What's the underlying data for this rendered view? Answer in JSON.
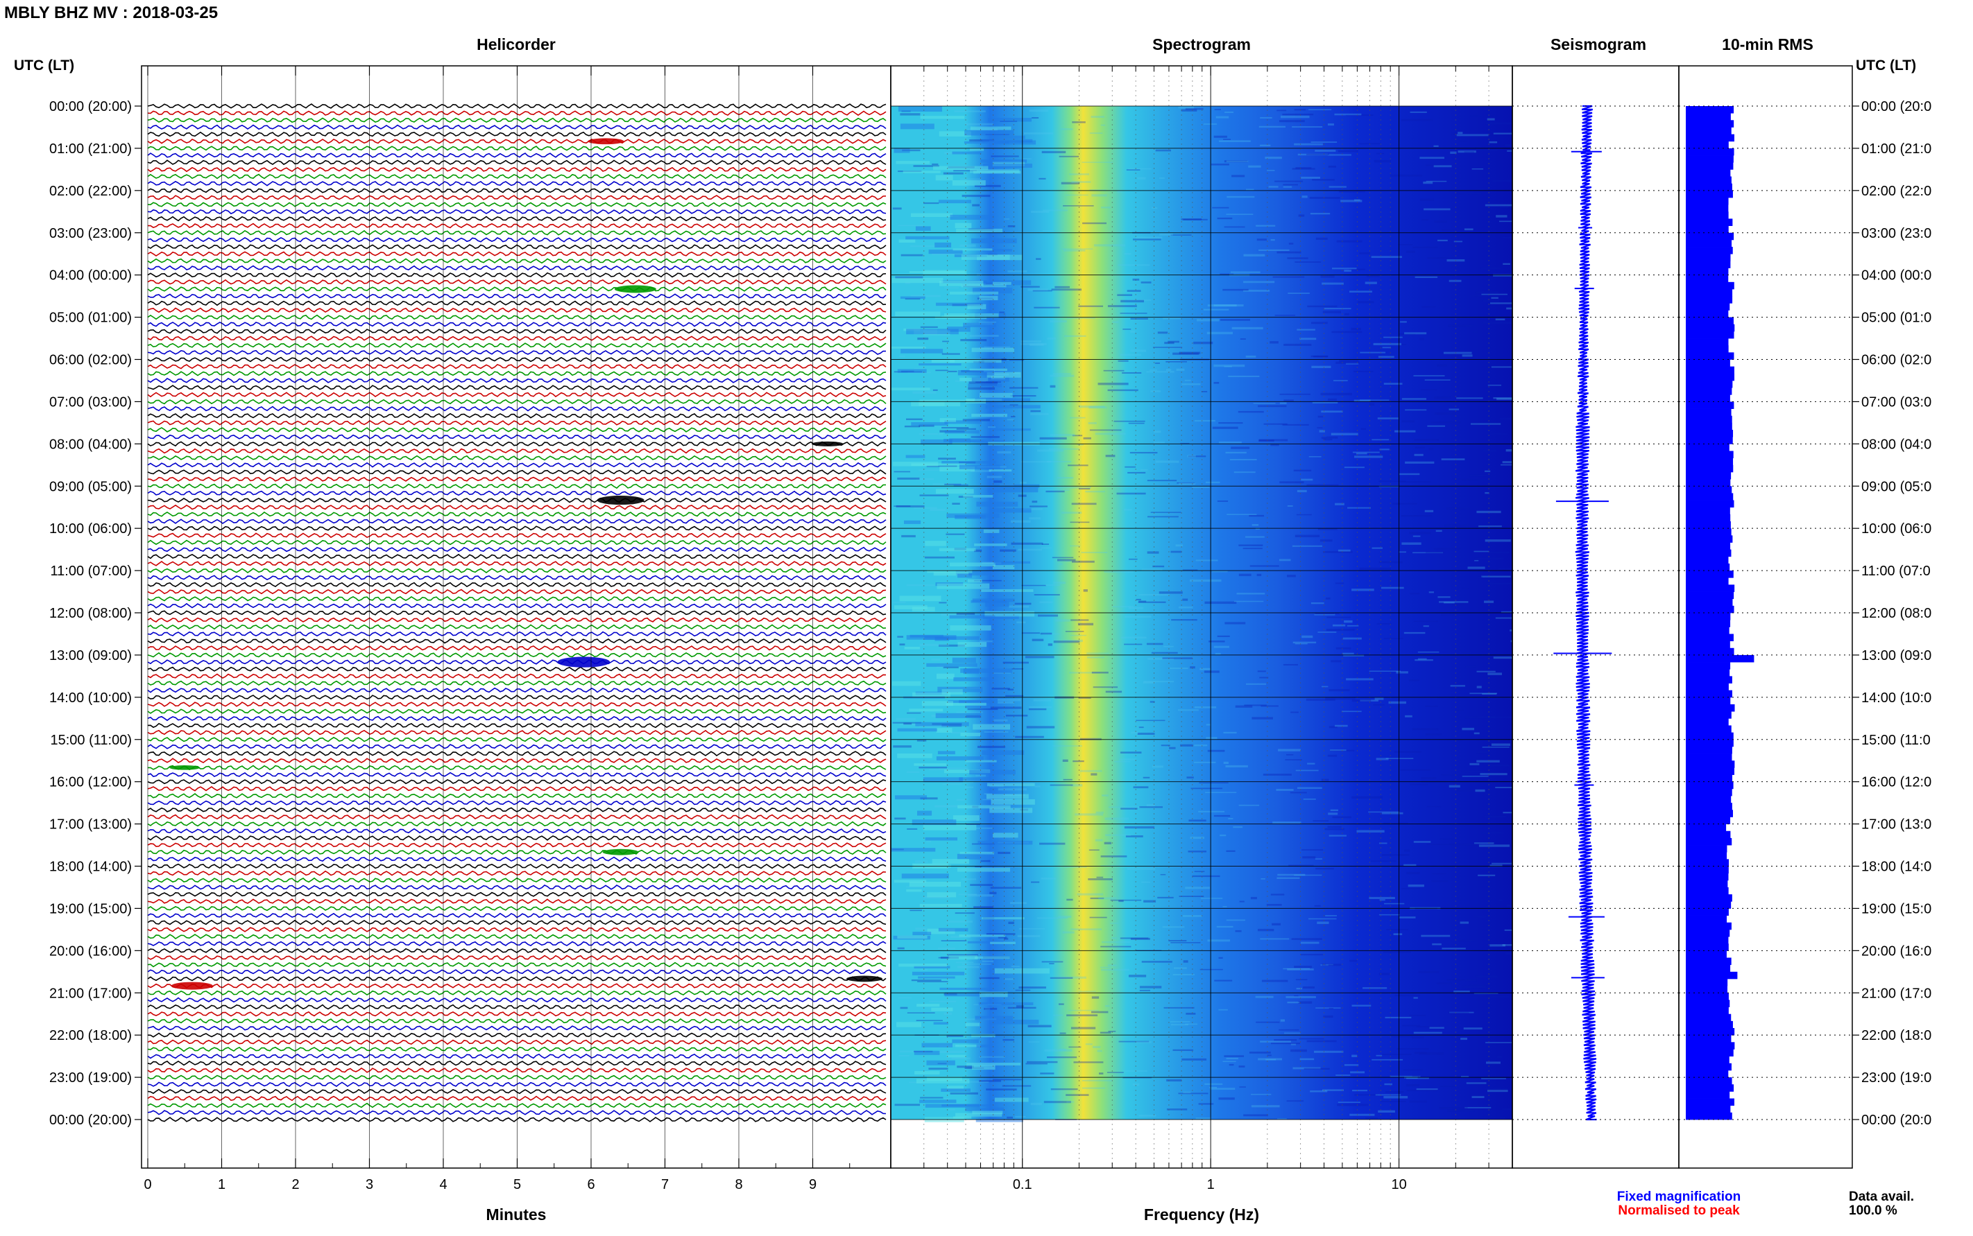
{
  "header": {
    "title": "MBLY BHZ MV : 2018-03-25"
  },
  "panels": {
    "helicorder": "Helicorder",
    "spectrogram": "Spectrogram",
    "seismogram": "Seismogram",
    "rms": "10-min RMS"
  },
  "time_axis": {
    "label_left": "UTC (LT)",
    "label_right": "UTC (LT)",
    "labels": [
      "00:00 (20:00)",
      "01:00 (21:00)",
      "02:00 (22:00)",
      "03:00 (23:00)",
      "04:00 (00:00)",
      "05:00 (01:00)",
      "06:00 (02:00)",
      "07:00 (03:00)",
      "08:00 (04:00)",
      "09:00 (05:00)",
      "10:00 (06:00)",
      "11:00 (07:00)",
      "12:00 (08:00)",
      "13:00 (09:00)",
      "14:00 (10:00)",
      "15:00 (11:00)",
      "16:00 (12:00)",
      "17:00 (13:00)",
      "18:00 (14:00)",
      "19:00 (15:00)",
      "20:00 (16:00)",
      "21:00 (17:00)",
      "22:00 (18:00)",
      "23:00 (19:00)",
      "00:00 (20:00)"
    ],
    "labels_right": [
      "00:00 (20:0",
      "01:00 (21:0",
      "02:00 (22:0",
      "03:00 (23:0",
      "04:00 (00:0",
      "05:00 (01:0",
      "06:00 (02:0",
      "07:00 (03:0",
      "08:00 (04:0",
      "09:00 (05:0",
      "10:00 (06:0",
      "11:00 (07:0",
      "12:00 (08:0",
      "13:00 (09:0",
      "14:00 (10:0",
      "15:00 (11:0",
      "16:00 (12:0",
      "17:00 (13:0",
      "18:00 (14:0",
      "19:00 (15:0",
      "20:00 (16:0",
      "21:00 (17:0",
      "22:00 (18:0",
      "23:00 (19:0",
      "00:00 (20:0"
    ]
  },
  "helicorder_axis": {
    "xlabel": "Minutes",
    "ticks": [
      "0",
      "1",
      "2",
      "3",
      "4",
      "5",
      "6",
      "7",
      "8",
      "9"
    ]
  },
  "spectrogram_axis": {
    "xlabel": "Frequency (Hz)",
    "ticks": [
      "0.1",
      "1",
      "10"
    ]
  },
  "legend": {
    "fixed": "Fixed magnification",
    "normalised": "Normalised to peak"
  },
  "data_avail": {
    "label": "Data avail.",
    "value": "100.0 %"
  },
  "colors": {
    "trace_cycle": [
      "#000000",
      "#cc0000",
      "#009900",
      "#0000cc"
    ],
    "seismogram": "#0000ff",
    "rms_bar": "#0000ff",
    "legend_fixed": "#0000ff",
    "legend_norm": "#ff0000",
    "spectro_bg": "#0a2ad0",
    "spectro_mid": "#1e78e8",
    "spectro_cyan": "#35c6e6",
    "spectro_yellow": "#f2e23a"
  },
  "chart_data": [
    {
      "type": "line",
      "name_text": "Helicorder",
      "x_range_minutes": [
        0,
        10
      ],
      "rows_per_hour": 6,
      "hours": 24,
      "events": [
        {
          "row": 5,
          "minute": 6.2,
          "amp": 2
        },
        {
          "row": 26,
          "minute": 6.6,
          "amp": 2.5
        },
        {
          "row": 48,
          "minute": 9.2,
          "amp": 1.6
        },
        {
          "row": 56,
          "minute": 6.4,
          "amp": 3
        },
        {
          "row": 79,
          "minute": 5.9,
          "amp": 3.5
        },
        {
          "row": 94,
          "minute": 0.5,
          "amp": 1.5
        },
        {
          "row": 106,
          "minute": 6.4,
          "amp": 2
        },
        {
          "row": 125,
          "minute": 0.6,
          "amp": 2.5
        },
        {
          "row": 124,
          "minute": 9.7,
          "amp": 2
        }
      ]
    },
    {
      "type": "heatmap",
      "name_text": "Spectrogram",
      "x_scale": "log",
      "x_range_hz": [
        0.02,
        40
      ],
      "microseism_peak_hz": 0.21,
      "y_range_hours": [
        0,
        24
      ]
    },
    {
      "type": "line",
      "name_text": "Seismogram",
      "y_range_hours": [
        0,
        24
      ]
    },
    {
      "type": "bar",
      "name_text": "10-min RMS",
      "bins": 144,
      "base_value": 0.55,
      "spikes": [
        {
          "bin": 78,
          "value": 0.82
        },
        {
          "bin": 123,
          "value": 0.62
        }
      ]
    }
  ]
}
